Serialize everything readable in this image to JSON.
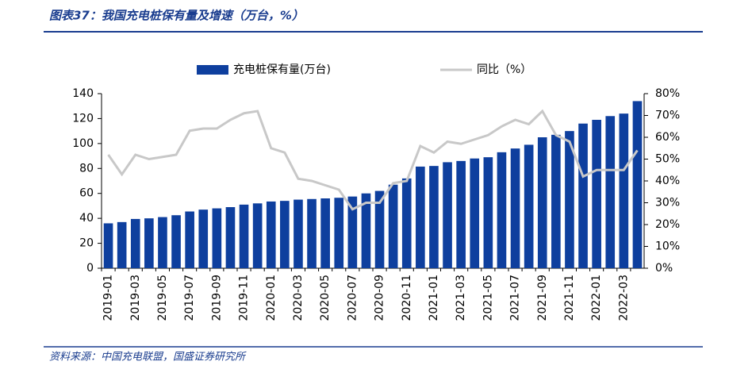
{
  "chart_data": {
    "type": "bar_line",
    "title": "图表37：我国充电桩保有量及增速（万台，%）",
    "source": "资料来源：中国充电联盟，国盛证券研究所",
    "categories": [
      "2019-01",
      null,
      "2019-03",
      null,
      "2019-05",
      null,
      "2019-07",
      null,
      "2019-09",
      null,
      "2019-11",
      null,
      "2020-01",
      null,
      "2020-03",
      null,
      "2020-05",
      null,
      "2020-07",
      null,
      "2020-09",
      null,
      "2020-11",
      null,
      "2021-01",
      null,
      "2021-03",
      null,
      "2021-05",
      null,
      "2021-07",
      null,
      "2021-09",
      null,
      "2021-11",
      null,
      "2022-01",
      null,
      "2022-03",
      null
    ],
    "series": [
      {
        "name": "充电桩保有量(万台)",
        "color": "#0e3f9e",
        "type": "bar",
        "values": [
          36,
          37,
          39.5,
          40,
          41,
          42.5,
          45.5,
          47,
          48,
          49,
          51,
          52,
          53.5,
          54,
          55,
          55.5,
          56,
          56.5,
          57.5,
          60,
          62,
          67,
          72,
          81.5,
          82,
          85,
          86,
          88,
          89,
          93,
          96,
          99,
          105,
          107,
          110,
          116,
          119,
          122,
          124,
          134
        ]
      },
      {
        "name": "同比（%）",
        "color": "#c8c8c8",
        "type": "line",
        "axis": "y2",
        "values": [
          52,
          43,
          52,
          50,
          51,
          52,
          63,
          64,
          64,
          68,
          71,
          72,
          55,
          53,
          41,
          40,
          38,
          36,
          27,
          30,
          30,
          39,
          40,
          56,
          53,
          58,
          57,
          59,
          61,
          65,
          68,
          66,
          72,
          61,
          58,
          42,
          45,
          45,
          45,
          54
        ]
      }
    ],
    "ylim": [
      0,
      140
    ],
    "yticks": [
      0,
      20,
      40,
      60,
      80,
      100,
      120,
      140
    ],
    "y2lim": [
      0,
      80
    ],
    "y2ticks": [
      {
        "value": 0,
        "label": "0%"
      },
      {
        "value": 10,
        "label": "10%"
      },
      {
        "value": 20,
        "label": "20%"
      },
      {
        "value": 30,
        "label": "30%"
      },
      {
        "value": 40,
        "label": "40%"
      },
      {
        "value": 50,
        "label": "50%"
      },
      {
        "value": 60,
        "label": "60%"
      },
      {
        "value": 70,
        "label": "70%"
      },
      {
        "value": 80,
        "label": "80%"
      }
    ]
  }
}
